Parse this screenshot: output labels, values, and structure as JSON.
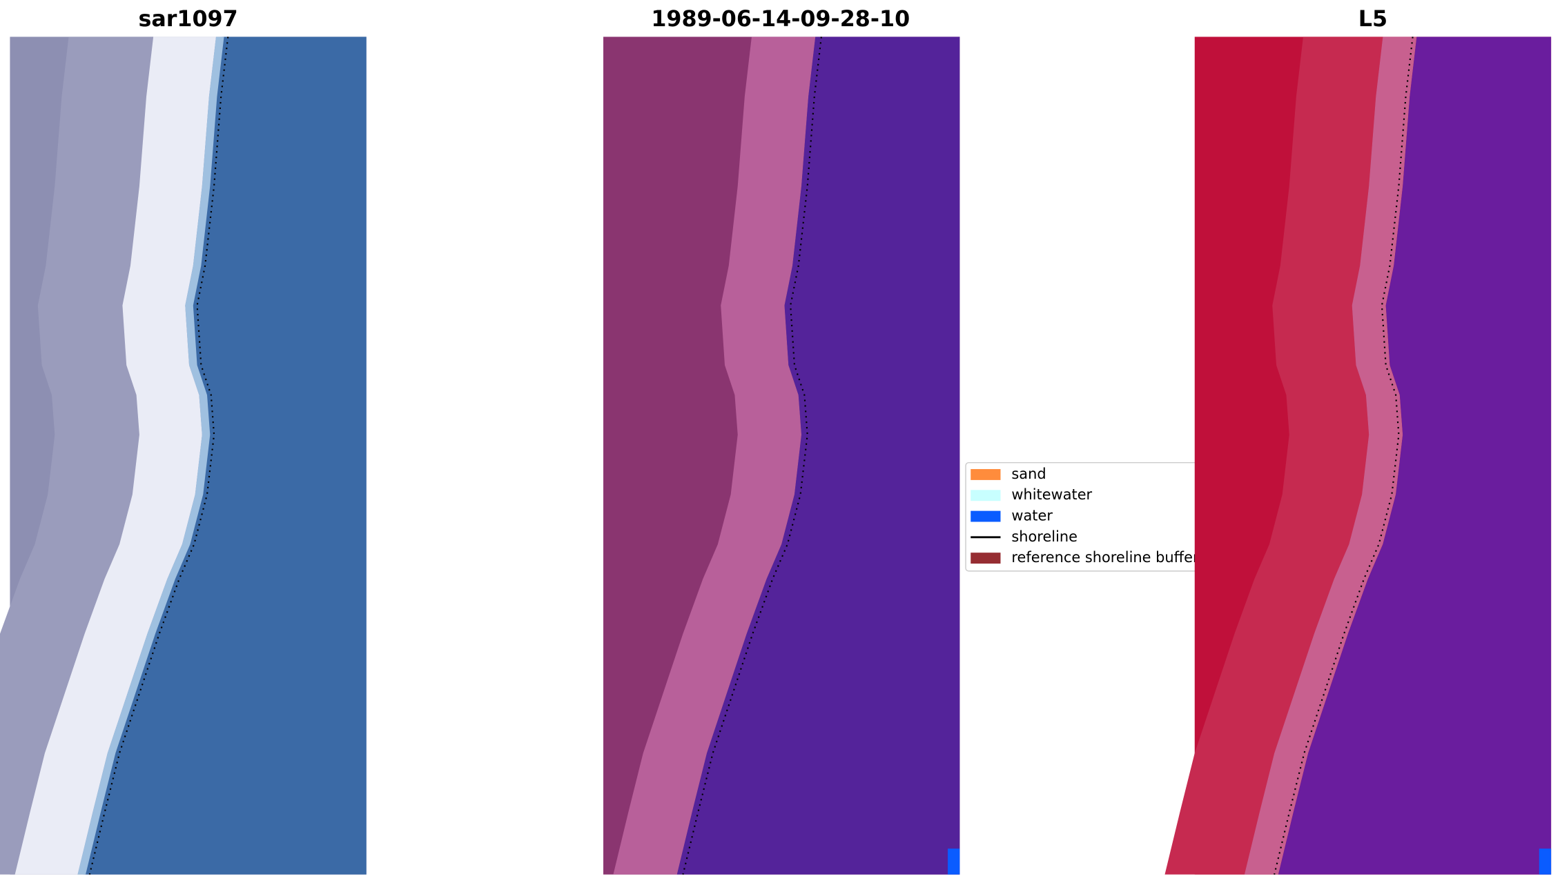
{
  "panels": [
    {
      "title": "sar1097"
    },
    {
      "title": "1989-06-14-09-28-10"
    },
    {
      "title": "L5"
    }
  ],
  "legend": {
    "entries": [
      {
        "label": "sand",
        "color": "#ff8c3c"
      },
      {
        "label": "whitewater",
        "color": "#c8ffff"
      },
      {
        "label": "water",
        "color": "#0a5cff"
      },
      {
        "label": "shoreline",
        "color": "#000000"
      },
      {
        "label": "reference shoreline buffer",
        "color": "#962d32"
      }
    ]
  }
}
